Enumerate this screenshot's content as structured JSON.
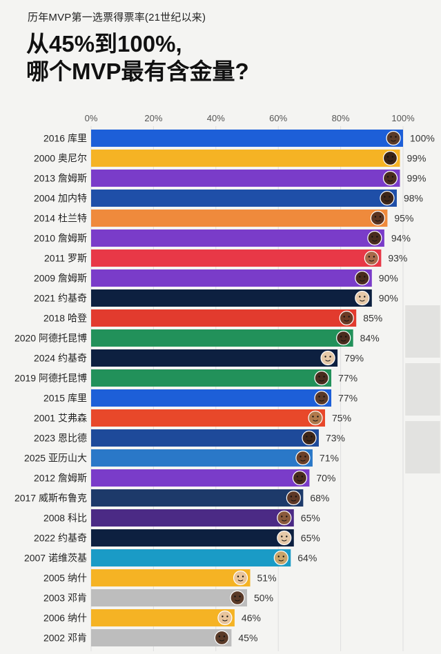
{
  "header": {
    "subtitle": "历年MVP第一选票得票率(21世纪以来)",
    "title_line1": "从45%到100%,",
    "title_line2": "哪个MVP最有含金量?"
  },
  "chart_data": {
    "type": "bar",
    "orientation": "horizontal",
    "title": "历年MVP第一选票得票率(21世纪以来)",
    "xlim": [
      0,
      100
    ],
    "xticks": [
      "0%",
      "20%",
      "40%",
      "60%",
      "80%",
      "100%"
    ],
    "categories": [
      "2016 库里",
      "2000 奥尼尔",
      "2013 詹姆斯",
      "2004 加内特",
      "2014 杜兰特",
      "2010 詹姆斯",
      "2011 罗斯",
      "2009 詹姆斯",
      "2021 约基奇",
      "2018 哈登",
      "2020 阿德托昆博",
      "2024 约基奇",
      "2019 阿德托昆博",
      "2015 库里",
      "2001 艾弗森",
      "2023 恩比德",
      "2025 亚历山大",
      "2012 詹姆斯",
      "2017 威斯布鲁克",
      "2008 科比",
      "2022 约基奇",
      "2007 诺维茨基",
      "2005 纳什",
      "2003 邓肯",
      "2006 纳什",
      "2002 邓肯"
    ],
    "values": [
      100,
      99,
      99,
      98,
      95,
      94,
      93,
      90,
      90,
      85,
      84,
      79,
      77,
      77,
      75,
      73,
      71,
      70,
      68,
      65,
      65,
      64,
      51,
      50,
      46,
      45
    ],
    "value_labels": [
      "100%",
      "99%",
      "99%",
      "98%",
      "95%",
      "94%",
      "93%",
      "90%",
      "90%",
      "85%",
      "84%",
      "79%",
      "77%",
      "77%",
      "75%",
      "73%",
      "71%",
      "70%",
      "68%",
      "65%",
      "65%",
      "64%",
      "51%",
      "50%",
      "46%",
      "45%"
    ],
    "bar_colors": [
      "#1d5fd8",
      "#f5b324",
      "#7a3cc9",
      "#1f4fa8",
      "#ef8a3c",
      "#7a3cc9",
      "#e83847",
      "#7a3cc9",
      "#0d2040",
      "#e23b2e",
      "#22915a",
      "#0d2040",
      "#22915a",
      "#1d5fd8",
      "#e8482a",
      "#1e4a9a",
      "#2a78c8",
      "#7a3cc9",
      "#1d3a6a",
      "#4b2a85",
      "#0d2040",
      "#1a9bc6",
      "#f5b324",
      "#bdbdbd",
      "#f5b324",
      "#bdbdbd"
    ],
    "face_colors": [
      "#5a3a28",
      "#3a2418",
      "#4a2c1e",
      "#3e2618",
      "#5b3522",
      "#4a2c1e",
      "#a86a4a",
      "#4a2c1e",
      "#e6c9a8",
      "#6b3a24",
      "#4a2c1e",
      "#e6c9a8",
      "#4a2c1e",
      "#5a3a28",
      "#b07a4c",
      "#3e2618",
      "#6b4028",
      "#4a2c1e",
      "#5e3826",
      "#8a5a3c",
      "#e6c9a8",
      "#c9a46a",
      "#e8c49c",
      "#5a3a28",
      "#e8c49c",
      "#5a3a28"
    ]
  }
}
